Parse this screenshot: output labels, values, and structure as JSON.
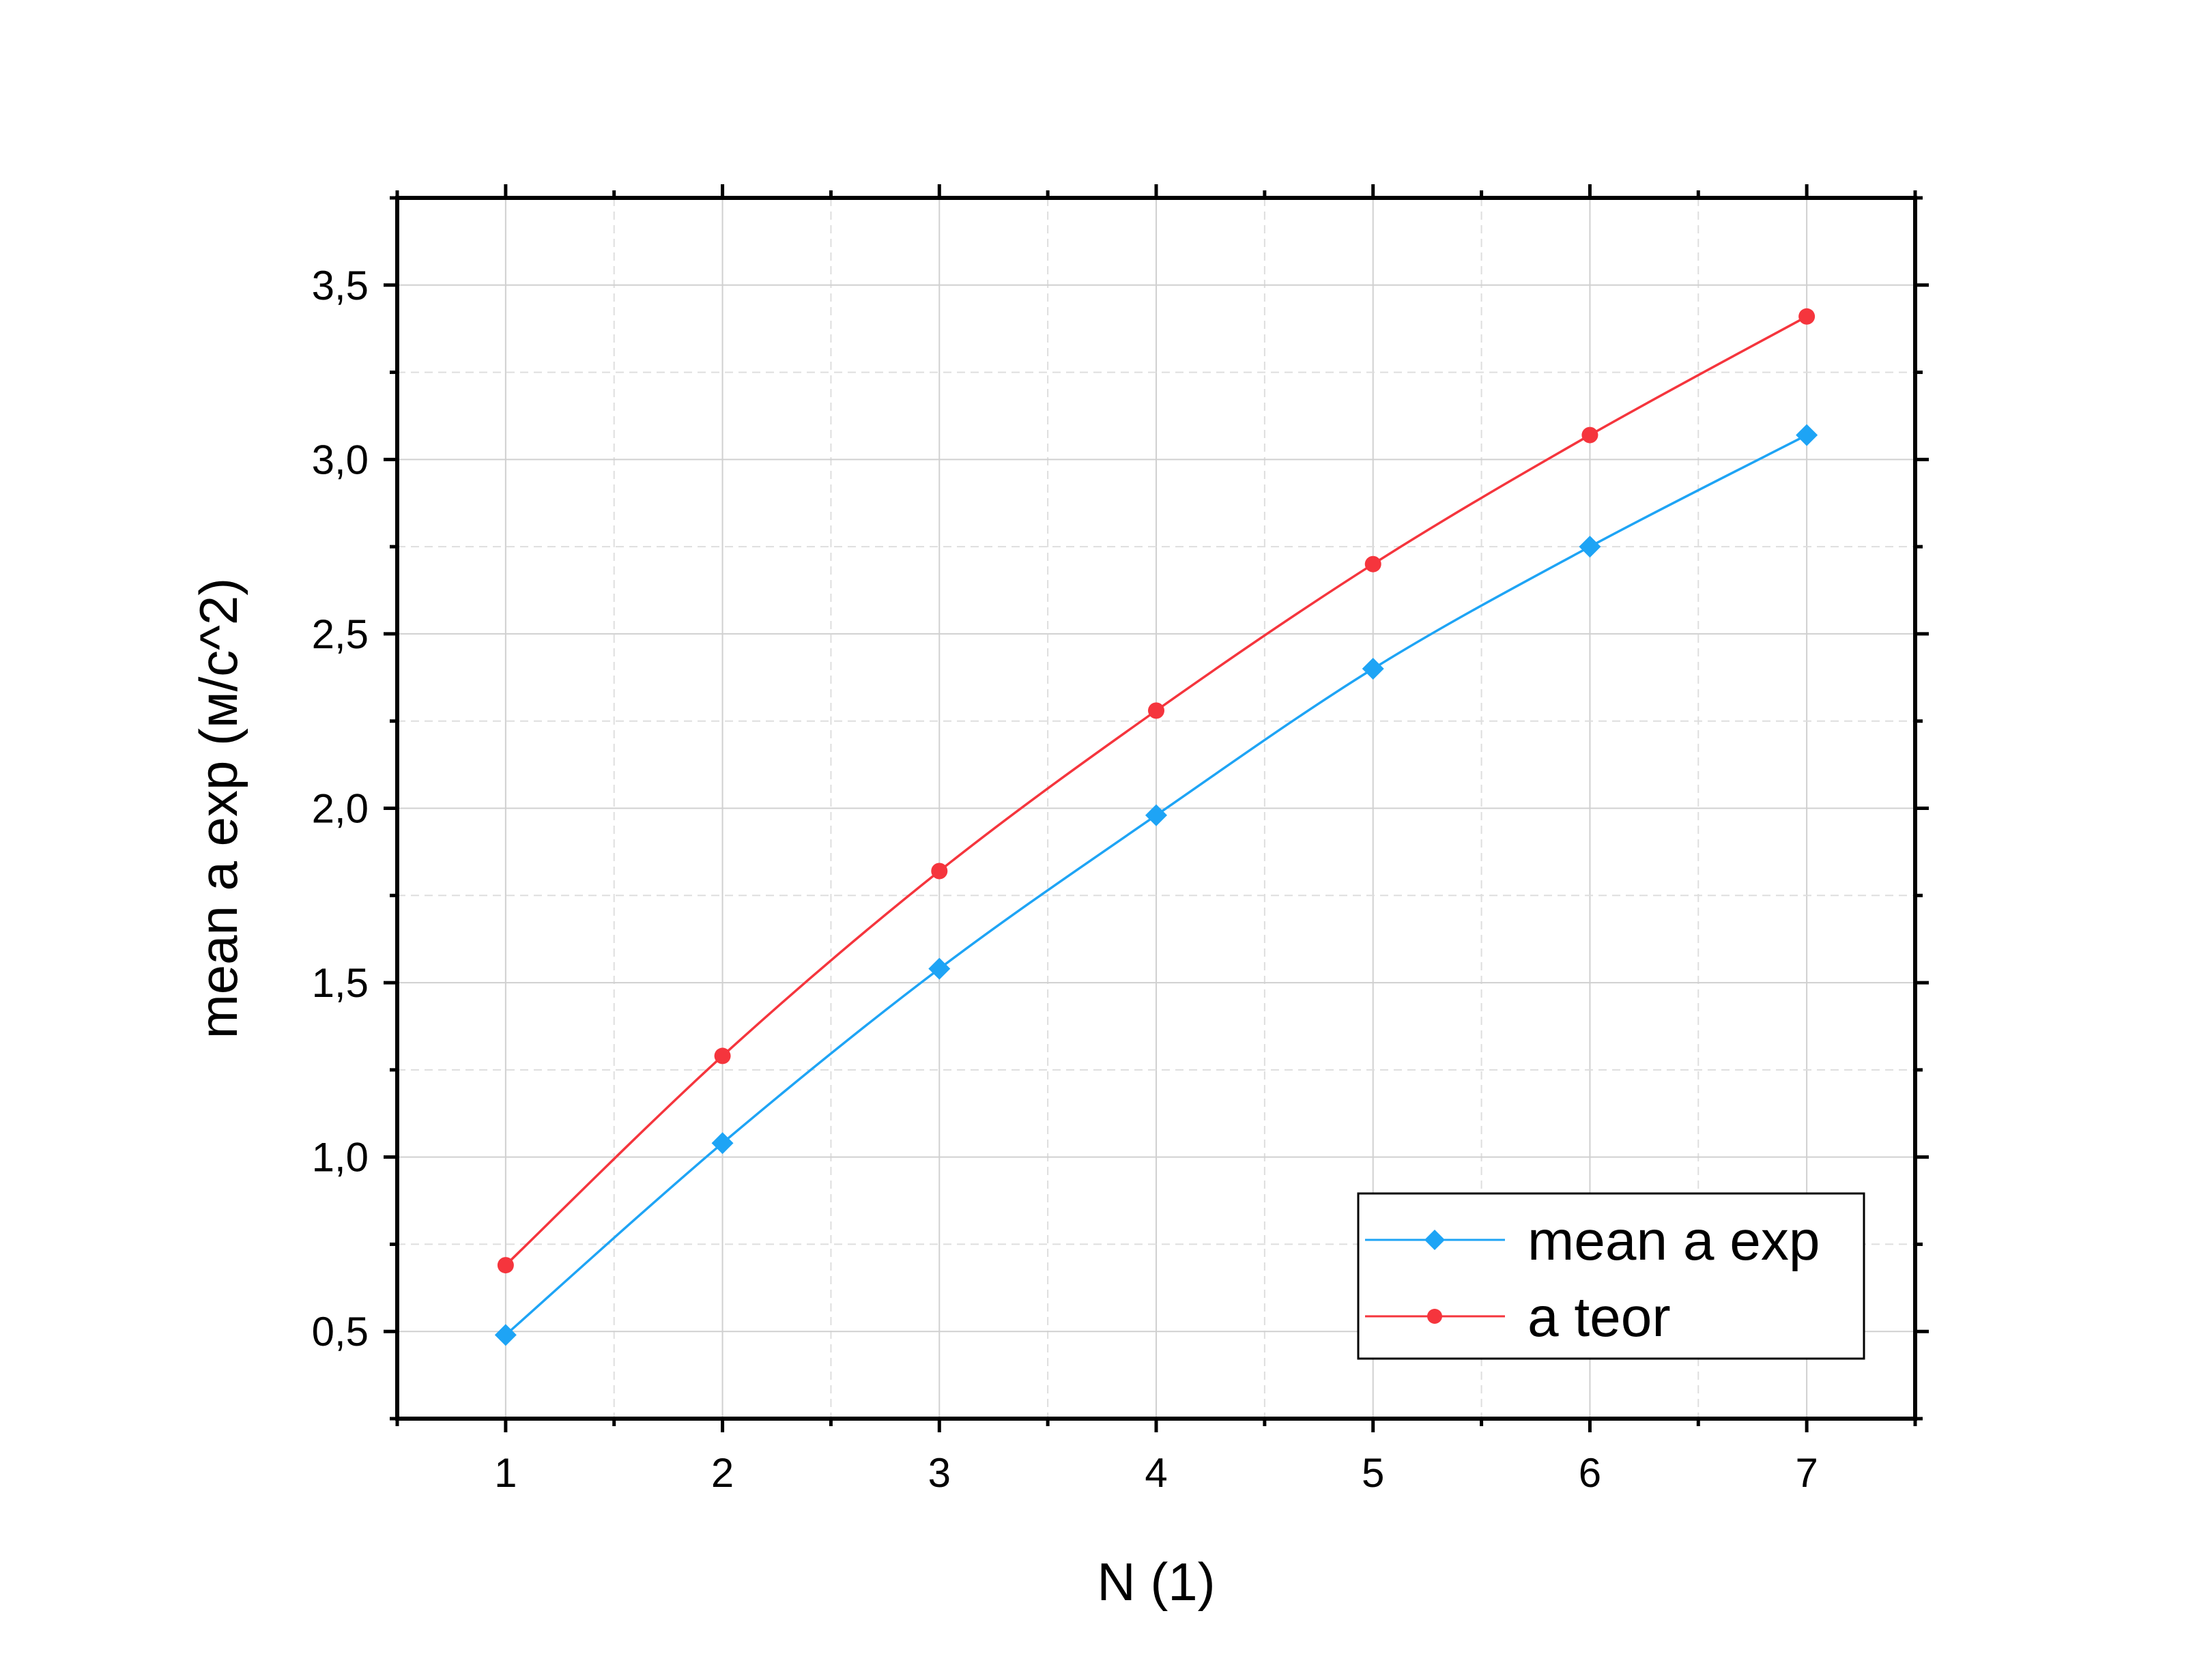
{
  "chart_data": {
    "type": "line",
    "xlabel": "N (1)",
    "ylabel": "mean a exp (м/с^2)",
    "xlim": [
      0.5,
      7.5
    ],
    "ylim": [
      0.25,
      3.75
    ],
    "x_ticks": [
      "1",
      "2",
      "3",
      "4",
      "5",
      "6",
      "7"
    ],
    "y_ticks": [
      "0,5",
      "1,0",
      "1,5",
      "2,0",
      "2,5",
      "3,0",
      "3,5"
    ],
    "y_tick_values": [
      0.5,
      1.0,
      1.5,
      2.0,
      2.5,
      3.0,
      3.5
    ],
    "grid": true,
    "legend_position": "bottom-right",
    "x": [
      1,
      2,
      3,
      4,
      5,
      6,
      7
    ],
    "series": [
      {
        "name": "mean a exp",
        "color": "#1ea4f5",
        "marker": "diamond",
        "values": [
          0.49,
          1.04,
          1.54,
          1.98,
          2.4,
          2.75,
          3.07
        ]
      },
      {
        "name": "a teor",
        "color": "#f5353d",
        "marker": "circle",
        "values": [
          0.69,
          1.29,
          1.82,
          2.28,
          2.7,
          3.07,
          3.41
        ]
      }
    ]
  }
}
